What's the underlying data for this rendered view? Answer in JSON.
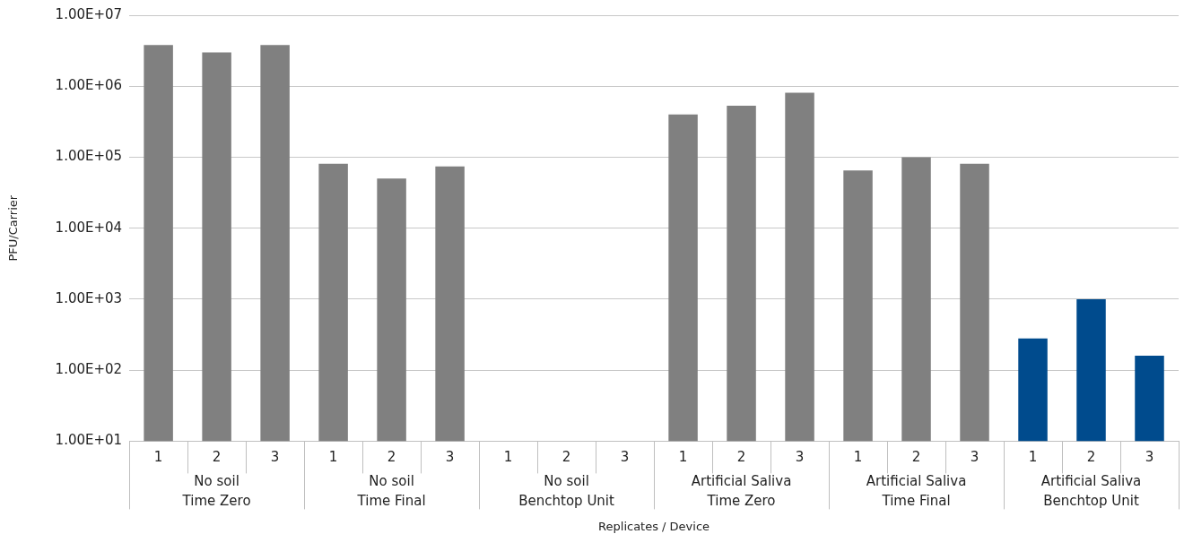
{
  "chart_data": {
    "type": "bar",
    "xlabel": "Replicates / Device",
    "ylabel": "PFU/Carrier",
    "categories": [
      "1",
      "2",
      "3",
      "1",
      "2",
      "3",
      "1",
      "2",
      "3",
      "1",
      "2",
      "3",
      "1",
      "2",
      "3",
      "1",
      "2",
      "3"
    ],
    "values": [
      3800000,
      3000000,
      3800000,
      81000,
      50000,
      74000,
      null,
      null,
      null,
      400000,
      530000,
      810000,
      65000,
      100000,
      81000,
      280,
      1000,
      160
    ],
    "colors": [
      "#808080",
      "#808080",
      "#808080",
      "#808080",
      "#808080",
      "#808080",
      "#808080",
      "#808080",
      "#808080",
      "#808080",
      "#808080",
      "#808080",
      "#808080",
      "#808080",
      "#808080",
      "#004b8d",
      "#004b8d",
      "#004b8d"
    ],
    "log": "y",
    "ylim": [
      10,
      10000000
    ],
    "yticks": [
      {
        "value": 10,
        "label": "1.00E+01"
      },
      {
        "value": 100,
        "label": "1.00E+02"
      },
      {
        "value": 1000,
        "label": "1.00E+03"
      },
      {
        "value": 10000,
        "label": "1.00E+04"
      },
      {
        "value": 100000,
        "label": "1.00E+05"
      },
      {
        "value": 1000000,
        "label": "1.00E+06"
      },
      {
        "value": 10000000,
        "label": "1.00E+07"
      }
    ],
    "grid": "y",
    "annotations": [
      "No soil\nTime Zero",
      "No soil\nTime Final",
      "No soil\nBenchtop Unit",
      "Artificial Saliva\nTime Zero",
      "Artificial Saliva\nTime Final",
      "Artificial Saliva\nBenchtop Unit"
    ]
  }
}
